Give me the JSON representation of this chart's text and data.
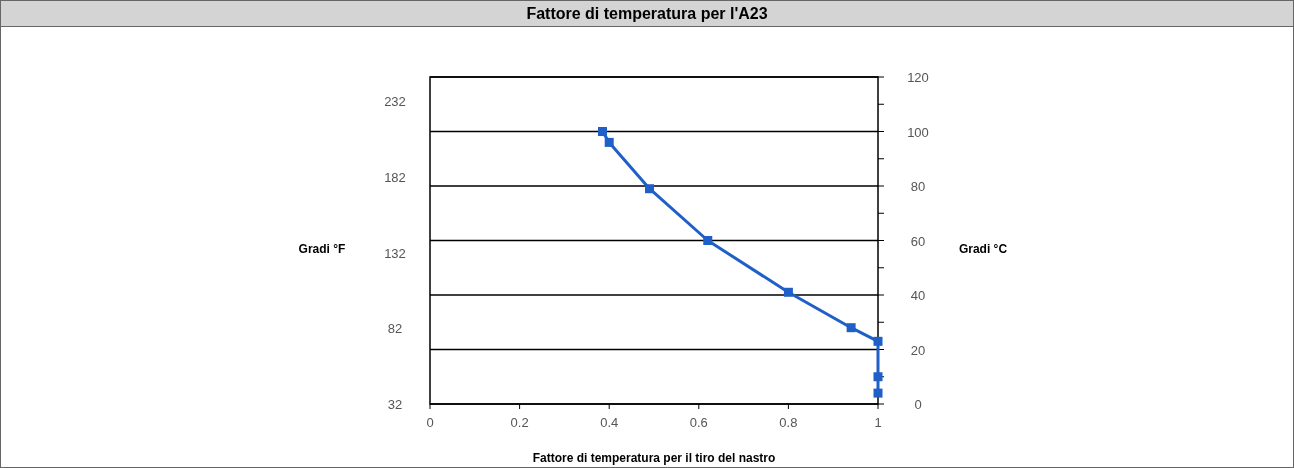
{
  "chart_data": {
    "type": "line",
    "title": "Fattore di temperatura per l'A23",
    "xlabel": "Fattore di temperatura per il tiro del nastro",
    "ylabel": "Gradi °C",
    "y2label": "Gradi °F",
    "x": [
      0.385,
      0.4,
      0.49,
      0.62,
      0.8,
      0.94,
      1.0,
      1.0,
      1.0
    ],
    "series": [
      {
        "color": "#1f5fc8",
        "values": [
          100,
          96,
          79,
          60,
          41,
          28,
          23,
          10,
          4
        ]
      }
    ],
    "xlim": [
      0,
      1
    ],
    "xticks": [
      0,
      0.2,
      0.4,
      0.6,
      0.8,
      1
    ],
    "ylim": [
      0,
      120
    ],
    "yticks": [
      0,
      {
        "value": 10,
        "label": null
      },
      20,
      {
        "value": 30,
        "label": null
      },
      40,
      {
        "value": 50,
        "label": null
      },
      60,
      {
        "value": 70,
        "label": null
      },
      80,
      {
        "value": 90,
        "label": null
      },
      100,
      {
        "value": 110,
        "label": null
      },
      120
    ],
    "y2lim": [
      32,
      248
    ],
    "y2ticks": [
      32,
      82,
      132,
      182,
      232
    ],
    "grid": "y",
    "marker": "square",
    "line_style": "solid"
  }
}
